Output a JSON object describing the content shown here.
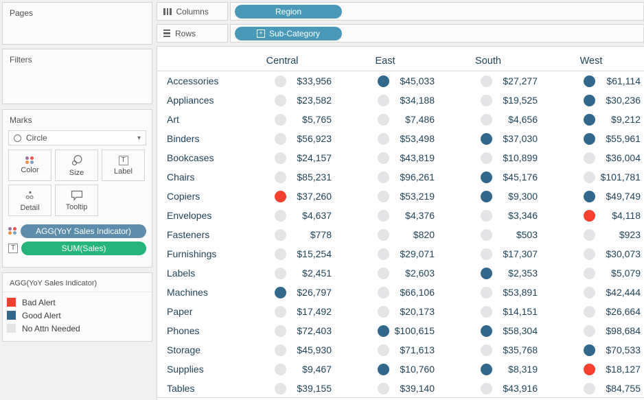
{
  "colors": {
    "bad": "#F6402F",
    "good": "#31688C",
    "none": "#E4E4E6",
    "pill_blue": "#4999B8",
    "viz_text": "#21445A"
  },
  "shelves": {
    "columns": {
      "label": "Columns",
      "pill": "Region"
    },
    "rows": {
      "label": "Rows",
      "pill": "Sub-Category"
    }
  },
  "left_panel": {
    "pages_title": "Pages",
    "filters_title": "Filters",
    "marks": {
      "title": "Marks",
      "mark_type": "Circle",
      "buttons": [
        {
          "label": "Color",
          "icon": "color-dots"
        },
        {
          "label": "Size",
          "icon": "size-circles"
        },
        {
          "label": "Label",
          "icon": "text-box"
        },
        {
          "label": "Detail",
          "icon": "detail-dots"
        },
        {
          "label": "Tooltip",
          "icon": "tooltip-bubble"
        }
      ],
      "pills": [
        {
          "label": "AGG(YoY Sales Indicator)",
          "icon": "color-dots",
          "color": "#5E8CAB"
        },
        {
          "label": "SUM(Sales)",
          "icon": "text-box",
          "color": "#24B47C"
        }
      ]
    },
    "legend": {
      "title": "AGG(YoY Sales Indicator)",
      "items": [
        {
          "label": "Bad Alert",
          "status": "bad"
        },
        {
          "label": "Good Alert",
          "status": "good"
        },
        {
          "label": "No Attn Needed",
          "status": "none"
        }
      ]
    }
  },
  "chart_data": {
    "type": "table",
    "column_headers": [
      "Central",
      "East",
      "South",
      "West"
    ],
    "status_meaning": {
      "bad": "Bad Alert",
      "good": "Good Alert",
      "none": "No Attn Needed"
    },
    "rows": [
      {
        "label": "Accessories",
        "cells": [
          {
            "value": "$33,956",
            "status": "none"
          },
          {
            "value": "$45,033",
            "status": "good"
          },
          {
            "value": "$27,277",
            "status": "none"
          },
          {
            "value": "$61,114",
            "status": "good"
          }
        ]
      },
      {
        "label": "Appliances",
        "cells": [
          {
            "value": "$23,582",
            "status": "none"
          },
          {
            "value": "$34,188",
            "status": "none"
          },
          {
            "value": "$19,525",
            "status": "none"
          },
          {
            "value": "$30,236",
            "status": "good"
          }
        ]
      },
      {
        "label": "Art",
        "cells": [
          {
            "value": "$5,765",
            "status": "none"
          },
          {
            "value": "$7,486",
            "status": "none"
          },
          {
            "value": "$4,656",
            "status": "none"
          },
          {
            "value": "$9,212",
            "status": "good"
          }
        ]
      },
      {
        "label": "Binders",
        "cells": [
          {
            "value": "$56,923",
            "status": "none"
          },
          {
            "value": "$53,498",
            "status": "none"
          },
          {
            "value": "$37,030",
            "status": "good"
          },
          {
            "value": "$55,961",
            "status": "good"
          }
        ]
      },
      {
        "label": "Bookcases",
        "cells": [
          {
            "value": "$24,157",
            "status": "none"
          },
          {
            "value": "$43,819",
            "status": "none"
          },
          {
            "value": "$10,899",
            "status": "none"
          },
          {
            "value": "$36,004",
            "status": "none"
          }
        ]
      },
      {
        "label": "Chairs",
        "cells": [
          {
            "value": "$85,231",
            "status": "none"
          },
          {
            "value": "$96,261",
            "status": "none"
          },
          {
            "value": "$45,176",
            "status": "good"
          },
          {
            "value": "$101,781",
            "status": "none"
          }
        ]
      },
      {
        "label": "Copiers",
        "cells": [
          {
            "value": "$37,260",
            "status": "bad"
          },
          {
            "value": "$53,219",
            "status": "none"
          },
          {
            "value": "$9,300",
            "status": "good"
          },
          {
            "value": "$49,749",
            "status": "good"
          }
        ]
      },
      {
        "label": "Envelopes",
        "cells": [
          {
            "value": "$4,637",
            "status": "none"
          },
          {
            "value": "$4,376",
            "status": "none"
          },
          {
            "value": "$3,346",
            "status": "none"
          },
          {
            "value": "$4,118",
            "status": "bad"
          }
        ]
      },
      {
        "label": "Fasteners",
        "cells": [
          {
            "value": "$778",
            "status": "none"
          },
          {
            "value": "$820",
            "status": "none"
          },
          {
            "value": "$503",
            "status": "none"
          },
          {
            "value": "$923",
            "status": "none"
          }
        ]
      },
      {
        "label": "Furnishings",
        "cells": [
          {
            "value": "$15,254",
            "status": "none"
          },
          {
            "value": "$29,071",
            "status": "none"
          },
          {
            "value": "$17,307",
            "status": "none"
          },
          {
            "value": "$30,073",
            "status": "none"
          }
        ]
      },
      {
        "label": "Labels",
        "cells": [
          {
            "value": "$2,451",
            "status": "none"
          },
          {
            "value": "$2,603",
            "status": "none"
          },
          {
            "value": "$2,353",
            "status": "good"
          },
          {
            "value": "$5,079",
            "status": "none"
          }
        ]
      },
      {
        "label": "Machines",
        "cells": [
          {
            "value": "$26,797",
            "status": "good"
          },
          {
            "value": "$66,106",
            "status": "none"
          },
          {
            "value": "$53,891",
            "status": "none"
          },
          {
            "value": "$42,444",
            "status": "none"
          }
        ]
      },
      {
        "label": "Paper",
        "cells": [
          {
            "value": "$17,492",
            "status": "none"
          },
          {
            "value": "$20,173",
            "status": "none"
          },
          {
            "value": "$14,151",
            "status": "none"
          },
          {
            "value": "$26,664",
            "status": "none"
          }
        ]
      },
      {
        "label": "Phones",
        "cells": [
          {
            "value": "$72,403",
            "status": "none"
          },
          {
            "value": "$100,615",
            "status": "good"
          },
          {
            "value": "$58,304",
            "status": "good"
          },
          {
            "value": "$98,684",
            "status": "none"
          }
        ]
      },
      {
        "label": "Storage",
        "cells": [
          {
            "value": "$45,930",
            "status": "none"
          },
          {
            "value": "$71,613",
            "status": "none"
          },
          {
            "value": "$35,768",
            "status": "none"
          },
          {
            "value": "$70,533",
            "status": "good"
          }
        ]
      },
      {
        "label": "Supplies",
        "cells": [
          {
            "value": "$9,467",
            "status": "none"
          },
          {
            "value": "$10,760",
            "status": "good"
          },
          {
            "value": "$8,319",
            "status": "good"
          },
          {
            "value": "$18,127",
            "status": "bad"
          }
        ]
      },
      {
        "label": "Tables",
        "cells": [
          {
            "value": "$39,155",
            "status": "none"
          },
          {
            "value": "$39,140",
            "status": "none"
          },
          {
            "value": "$43,916",
            "status": "none"
          },
          {
            "value": "$84,755",
            "status": "none"
          }
        ]
      }
    ]
  }
}
